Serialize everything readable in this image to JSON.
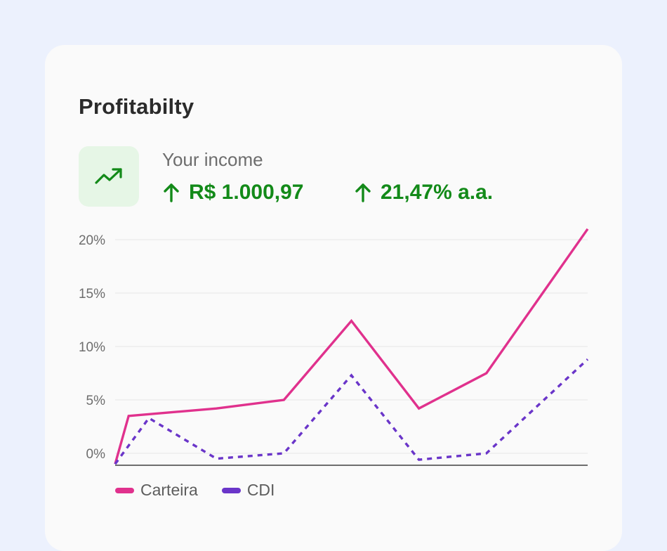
{
  "card": {
    "title": "Profitabilty",
    "income_label": "Your income",
    "income_value": "R$ 1.000,97",
    "rate_value": "21,47% a.a.",
    "icon": "trending-up-icon",
    "positive_color": "#138a19",
    "icon_bg": "#e6f6e6"
  },
  "chart_data": {
    "type": "line",
    "x": [
      0,
      1,
      2,
      3,
      4,
      5,
      6,
      7
    ],
    "ylim": [
      -1.5,
      22
    ],
    "yticks": [
      {
        "value": 0,
        "label": "0%"
      },
      {
        "value": 5,
        "label": "5%"
      },
      {
        "value": 10,
        "label": "10%"
      },
      {
        "value": 15,
        "label": "15%"
      },
      {
        "value": 20,
        "label": "20%"
      }
    ],
    "grid": true,
    "legend_position": "bottom-left",
    "series": [
      {
        "name": "Carteira",
        "color": "#e0318d",
        "dashed": false,
        "points": [
          [
            0,
            -1
          ],
          [
            0.2,
            3.5
          ],
          [
            1.5,
            4.2
          ],
          [
            2.5,
            5
          ],
          [
            3.5,
            12.4
          ],
          [
            4.5,
            4.2
          ],
          [
            5.5,
            7.5
          ],
          [
            7,
            21
          ]
        ]
      },
      {
        "name": "CDI",
        "color": "#6a35c9",
        "dashed": true,
        "points": [
          [
            0,
            -1
          ],
          [
            0.5,
            3.3
          ],
          [
            1.5,
            -0.5
          ],
          [
            2.5,
            0
          ],
          [
            3.5,
            7.3
          ],
          [
            4.5,
            -0.6
          ],
          [
            5.5,
            0
          ],
          [
            7,
            8.8
          ]
        ]
      }
    ]
  }
}
